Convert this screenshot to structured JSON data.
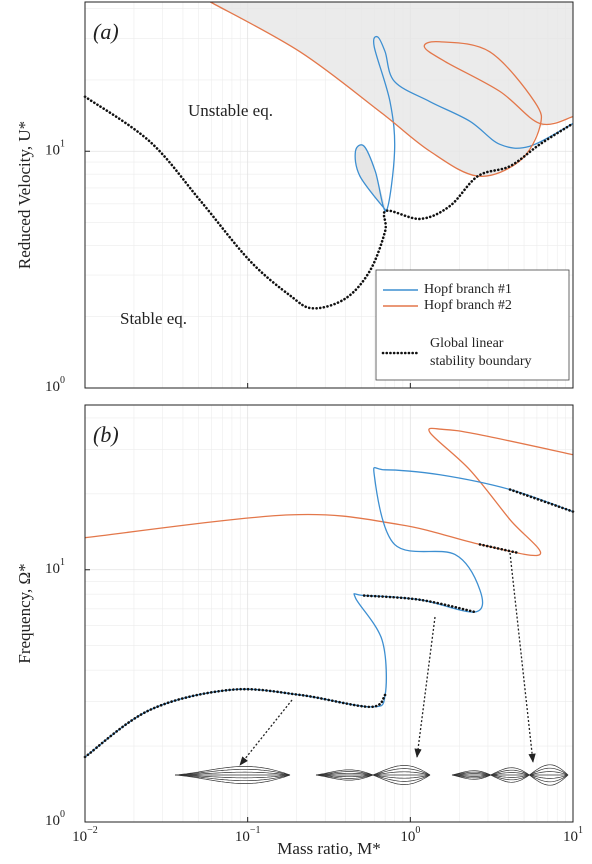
{
  "chart_data": [
    {
      "type": "line",
      "panel": "(a)",
      "log_x": true,
      "log_y": true,
      "grid": true,
      "minor_grid": true,
      "ylabel": "Reduced Velocity, U*",
      "xlim": [
        0.01,
        10
      ],
      "ylim": [
        1,
        42.7
      ],
      "xticks": [
        0.01,
        0.1,
        1,
        10
      ],
      "yticks": [
        {
          "value": 1,
          "label": "10",
          "exp": "0"
        },
        {
          "value": 10,
          "label": "10",
          "exp": "1"
        }
      ],
      "legend": "lower right",
      "annotations": [
        "Unstable eq.",
        "Stable eq."
      ],
      "series": [
        {
          "name": "Hopf branch #1",
          "color": "#3d8fd1",
          "style": "solid",
          "x": [
            0.71,
            0.49,
            0.46,
            0.52,
            0.61,
            0.71,
            0.8,
            0.75,
            0.6,
            0.63,
            0.7,
            0.8,
            1.32,
            2.32,
            3.55,
            5.43,
            10
          ],
          "values": [
            5.6,
            7.85,
            10,
            10.5,
            8.2,
            5.6,
            10.0,
            16.2,
            27.6,
            30.4,
            26.3,
            19.7,
            16.2,
            13.4,
            10.7,
            10.5,
            13.1
          ]
        },
        {
          "name": "Hopf branch #2",
          "color": "#e3774a",
          "style": "solid",
          "x": [
            0.059,
            0.21,
            0.65,
            1.32,
            2.6,
            4.7,
            6.26,
            5.8,
            3.08,
            1.52,
            1.22,
            1.64,
            3.55,
            6.26,
            10
          ],
          "values": [
            42.7,
            26.3,
            14.7,
            10,
            7.85,
            9.1,
            12.7,
            16.2,
            26.3,
            29,
            27.6,
            23.9,
            17.9,
            13.1,
            14.0
          ]
        },
        {
          "name": "Global linear stability boundary",
          "color": "#111111",
          "style": "dotted",
          "x": [
            0.01,
            0.025,
            0.051,
            0.103,
            0.182,
            0.252,
            0.4,
            0.565,
            0.7,
            0.71,
            1.15,
            1.75,
            2.6,
            4.1,
            6.26,
            10
          ],
          "values": [
            17.0,
            11.0,
            6.2,
            3.45,
            2.46,
            2.17,
            2.39,
            3.13,
            4.6,
            5.6,
            5.18,
            5.87,
            7.85,
            8.65,
            10.7,
            13.1
          ]
        }
      ]
    },
    {
      "type": "line",
      "panel": "(b)",
      "log_x": true,
      "log_y": true,
      "grid": true,
      "minor_grid": true,
      "ylabel": "Frequency, Ω*",
      "xlabel": "Mass ratio, M*",
      "xlim": [
        0.01,
        10
      ],
      "ylim": [
        1,
        45
      ],
      "xticks": [
        {
          "value": 0.01,
          "label": "10",
          "exp": "−2"
        },
        {
          "value": 0.1,
          "label": "10",
          "exp": "−1"
        },
        {
          "value": 1,
          "label": "10",
          "exp": "0"
        },
        {
          "value": 10,
          "label": "10",
          "exp": "1"
        }
      ],
      "yticks": [
        {
          "value": 1,
          "label": "10",
          "exp": "0"
        },
        {
          "value": 10,
          "label": "10",
          "exp": "1"
        }
      ],
      "series": [
        {
          "color": "#e3774a",
          "style": "solid",
          "x": [
            0.01,
            0.18,
            0.86,
            2.68,
            6.26,
            4.1,
            2.32,
            1.32,
            1.6,
            2.68,
            10
          ],
          "values": [
            13.4,
            16.5,
            15.1,
            12.6,
            11.5,
            15.8,
            24.9,
            35,
            36,
            34.3,
            28.6
          ]
        },
        {
          "color": "#3d8fd1",
          "style": "solid",
          "x": [
            0.01,
            0.025,
            0.078,
            0.21,
            0.565,
            0.7,
            0.67,
            0.46,
            0.52,
            1.15,
            2.5,
            2.68,
            1.88,
            0.8,
            0.6,
            0.7,
            1.52,
            4.1,
            10
          ],
          "values": [
            1.81,
            2.78,
            3.34,
            3.19,
            2.86,
            3.19,
            5.27,
            7.74,
            7.9,
            7.6,
            6.8,
            8.3,
            11.5,
            12.6,
            23.8,
            24.9,
            23.8,
            20.8,
            17.0
          ]
        },
        {
          "color": "#111111",
          "style": "dotted",
          "x": [
            0.01,
            0.025,
            0.078,
            0.21,
            0.565,
            0.7,
            null,
            0.52,
            1.15,
            2.5,
            null,
            2.68,
            4.5,
            null,
            4.1,
            10
          ],
          "values": [
            1.81,
            2.78,
            3.34,
            3.19,
            2.86,
            3.19,
            null,
            7.9,
            7.6,
            6.8,
            null,
            12.6,
            11.7,
            null,
            20.8,
            17.0
          ]
        }
      ]
    }
  ]
}
